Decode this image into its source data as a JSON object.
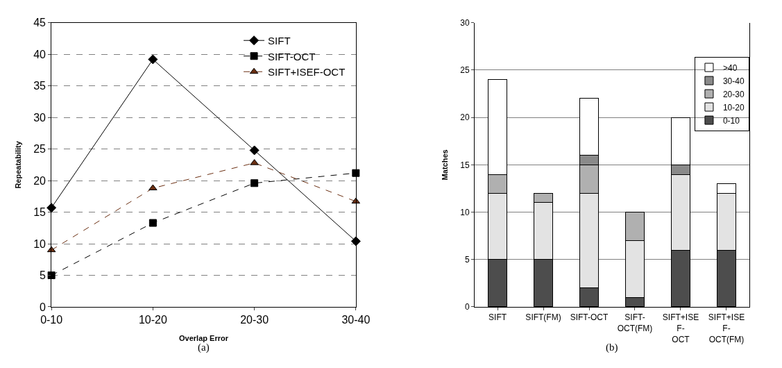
{
  "chart_data": [
    {
      "type": "line",
      "xlabel": "Overlap Error",
      "ylabel": "Repeatability",
      "categories": [
        "0-10",
        "10-20",
        "20-30",
        "30-40"
      ],
      "ylim": [
        0,
        45
      ],
      "yticks": [
        0,
        5,
        10,
        15,
        20,
        25,
        30,
        35,
        40,
        45
      ],
      "grid": "y",
      "legend": "top right",
      "annotations": [
        "(a)"
      ],
      "series": [
        {
          "name": "SIFT",
          "color": "#000000",
          "marker": "diamond",
          "line_style": "solid",
          "values": [
            15.7,
            39.2,
            24.8,
            10.4
          ]
        },
        {
          "name": "SIFT-OCT",
          "color": "#000000",
          "marker": "square",
          "line_style": "dashed",
          "values": [
            5,
            13.3,
            19.6,
            21.2
          ]
        },
        {
          "name": "SIFT+ISEF-OCT",
          "color": "#6b2f12",
          "marker": "triangle",
          "line_style": "dashed",
          "values": [
            9,
            18.8,
            22.8,
            16.7
          ]
        }
      ]
    },
    {
      "type": "bar",
      "stacked": true,
      "ylabel": "Matches",
      "categories": [
        "SIFT",
        "SIFT(FM)",
        "SIFT-OCT",
        "SIFT-OCT(FM)",
        "SIFT+ISEF-OCT",
        "SIFT+ISEF-OCT(FM)"
      ],
      "ylim": [
        0,
        30
      ],
      "yticks": [
        0,
        5,
        10,
        15,
        20,
        25,
        30
      ],
      "grid": "y",
      "legend": "right",
      "annotations": [
        "(b)"
      ],
      "series": [
        {
          "name": "0-10",
          "color": "#4d4d4d",
          "values": [
            5,
            5,
            2,
            1,
            6,
            6
          ]
        },
        {
          "name": "10-20",
          "color": "#e3e3e3",
          "values": [
            7,
            6,
            10,
            6,
            8,
            6
          ]
        },
        {
          "name": "20-30",
          "color": "#b0b0b0",
          "values": [
            2,
            1,
            3,
            3,
            null,
            null
          ]
        },
        {
          "name": "30-40",
          "color": "#8a8a8a",
          "values": [
            null,
            null,
            1,
            null,
            1,
            null
          ]
        },
        {
          "name": ">40",
          "color": "#ffffff",
          "values": [
            10,
            null,
            6,
            null,
            5,
            1
          ]
        }
      ]
    }
  ]
}
